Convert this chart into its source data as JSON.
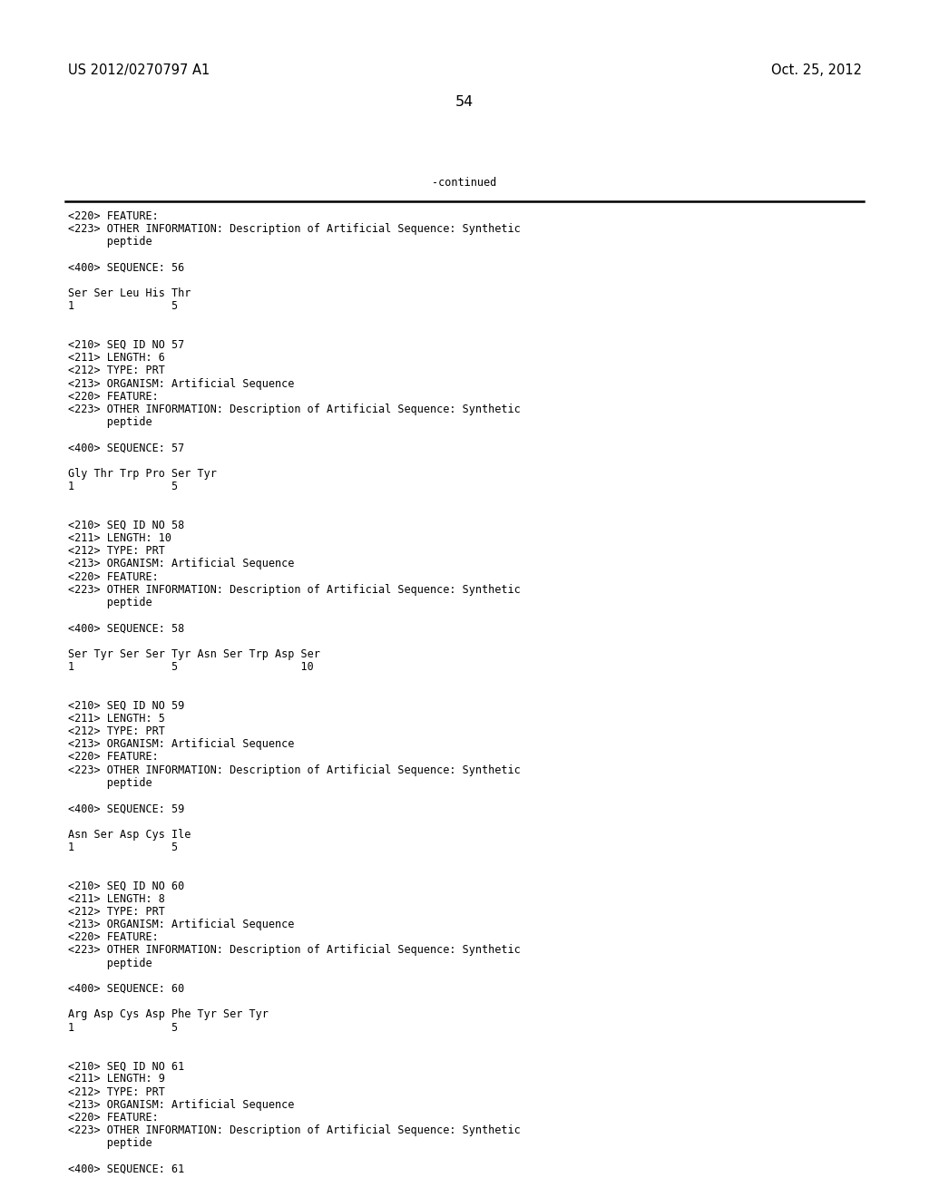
{
  "background_color": "#ffffff",
  "header_left": "US 2012/0270797 A1",
  "header_right": "Oct. 25, 2012",
  "page_number": "54",
  "continued_label": "-continued",
  "body_font_size": 8.5,
  "header_font_size": 10.5,
  "page_num_font_size": 11.5,
  "content": [
    "<220> FEATURE:",
    "<223> OTHER INFORMATION: Description of Artificial Sequence: Synthetic",
    "      peptide",
    "",
    "<400> SEQUENCE: 56",
    "",
    "Ser Ser Leu His Thr",
    "1               5",
    "",
    "",
    "<210> SEQ ID NO 57",
    "<211> LENGTH: 6",
    "<212> TYPE: PRT",
    "<213> ORGANISM: Artificial Sequence",
    "<220> FEATURE:",
    "<223> OTHER INFORMATION: Description of Artificial Sequence: Synthetic",
    "      peptide",
    "",
    "<400> SEQUENCE: 57",
    "",
    "Gly Thr Trp Pro Ser Tyr",
    "1               5",
    "",
    "",
    "<210> SEQ ID NO 58",
    "<211> LENGTH: 10",
    "<212> TYPE: PRT",
    "<213> ORGANISM: Artificial Sequence",
    "<220> FEATURE:",
    "<223> OTHER INFORMATION: Description of Artificial Sequence: Synthetic",
    "      peptide",
    "",
    "<400> SEQUENCE: 58",
    "",
    "Ser Tyr Ser Ser Tyr Asn Ser Trp Asp Ser",
    "1               5                   10",
    "",
    "",
    "<210> SEQ ID NO 59",
    "<211> LENGTH: 5",
    "<212> TYPE: PRT",
    "<213> ORGANISM: Artificial Sequence",
    "<220> FEATURE:",
    "<223> OTHER INFORMATION: Description of Artificial Sequence: Synthetic",
    "      peptide",
    "",
    "<400> SEQUENCE: 59",
    "",
    "Asn Ser Asp Cys Ile",
    "1               5",
    "",
    "",
    "<210> SEQ ID NO 60",
    "<211> LENGTH: 8",
    "<212> TYPE: PRT",
    "<213> ORGANISM: Artificial Sequence",
    "<220> FEATURE:",
    "<223> OTHER INFORMATION: Description of Artificial Sequence: Synthetic",
    "      peptide",
    "",
    "<400> SEQUENCE: 60",
    "",
    "Arg Asp Cys Asp Phe Tyr Ser Tyr",
    "1               5",
    "",
    "",
    "<210> SEQ ID NO 61",
    "<211> LENGTH: 9",
    "<212> TYPE: PRT",
    "<213> ORGANISM: Artificial Sequence",
    "<220> FEATURE:",
    "<223> OTHER INFORMATION: Description of Artificial Sequence: Synthetic",
    "      peptide",
    "",
    "<400> SEQUENCE: 61"
  ]
}
